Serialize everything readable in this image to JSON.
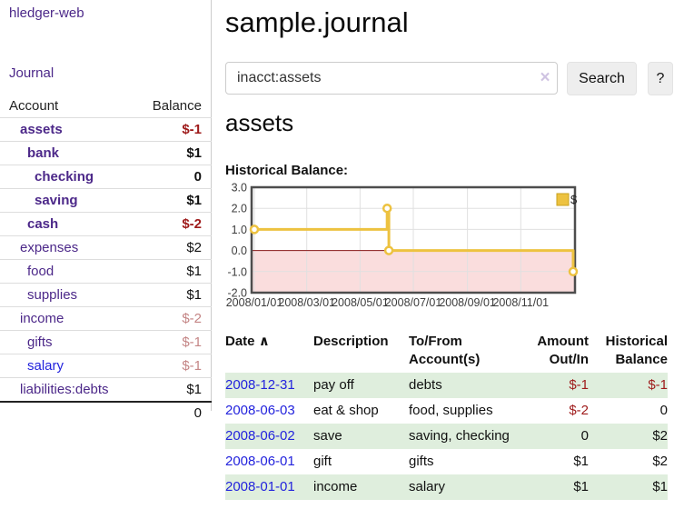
{
  "sidebar": {
    "brand": "hledger-web",
    "nav_journal": "Journal",
    "headers": {
      "account": "Account",
      "balance": "Balance"
    },
    "accounts": [
      {
        "name": "assets",
        "balance": "$-1"
      },
      {
        "name": "bank",
        "balance": "$1"
      },
      {
        "name": "checking",
        "balance": "0"
      },
      {
        "name": "saving",
        "balance": "$1"
      },
      {
        "name": "cash",
        "balance": "$-2"
      },
      {
        "name": "expenses",
        "balance": "$2"
      },
      {
        "name": "food",
        "balance": "$1"
      },
      {
        "name": "supplies",
        "balance": "$1"
      },
      {
        "name": "income",
        "balance": "$-2"
      },
      {
        "name": "gifts",
        "balance": "$-1"
      },
      {
        "name": "salary",
        "balance": "$-1"
      },
      {
        "name": "liabilities:debts",
        "balance": "$1"
      }
    ],
    "total": "0"
  },
  "header": {
    "title": "sample.journal"
  },
  "search": {
    "value": "inacct:assets",
    "clear_icon": "×",
    "button": "Search",
    "help": "?"
  },
  "account_page": {
    "heading": "assets",
    "chart_label": "Historical Balance:"
  },
  "chart_data": {
    "type": "line",
    "title": "Historical Balance",
    "legend": {
      "label": "$",
      "position": "top-right"
    },
    "series": [
      {
        "name": "$",
        "step": true,
        "points": [
          [
            "2008-01-01",
            1
          ],
          [
            "2008-06-01",
            2
          ],
          [
            "2008-06-03",
            0
          ],
          [
            "2008-12-31",
            -1
          ]
        ]
      }
    ],
    "xlim": [
      "2008-01-01",
      "2008-12-31"
    ],
    "ylim": [
      -2,
      3
    ],
    "y_ticks": [
      {
        "v": 3,
        "label": "3.0"
      },
      {
        "v": 2,
        "label": "2.0"
      },
      {
        "v": 1,
        "label": "1.0"
      },
      {
        "v": 0,
        "label": "0.0"
      },
      {
        "v": -1,
        "label": "-1.0"
      },
      {
        "v": -2,
        "label": "-2.0"
      }
    ],
    "x_ticks": [
      {
        "d": "2008-01-01",
        "label": "2008/01/01"
      },
      {
        "d": "2008-03-01",
        "label": "2008/03/01"
      },
      {
        "d": "2008-05-01",
        "label": "2008/05/01"
      },
      {
        "d": "2008-07-01",
        "label": "2008/07/01"
      },
      {
        "d": "2008-09-01",
        "label": "2008/09/01"
      },
      {
        "d": "2008-11-01",
        "label": "2008/11/01"
      }
    ],
    "grid": true,
    "colors": {
      "line": "#edc240",
      "marker_fill": "#ffffff",
      "negative_region": "#fadddd",
      "zero_line": "#8b1a1a",
      "grid": "#e0e0e0",
      "border": "#4d4d4d",
      "tick_text": "#3c3c3c"
    }
  },
  "register": {
    "headers": {
      "date": "Date",
      "sort_icon": "∧",
      "description": "Description",
      "account": "To/From Account(s)",
      "amount": "Amount Out/In",
      "balance": "Historical Balance"
    },
    "rows": [
      {
        "date": "2008-12-31",
        "description": "pay off",
        "accounts": "debts",
        "amount": "$-1",
        "balance": "$-1"
      },
      {
        "date": "2008-06-03",
        "description": "eat & shop",
        "accounts": "food, supplies",
        "amount": "$-2",
        "balance": "0"
      },
      {
        "date": "2008-06-02",
        "description": "save",
        "accounts": "saving, checking",
        "amount": "0",
        "balance": "$2"
      },
      {
        "date": "2008-06-01",
        "description": "gift",
        "accounts": "gifts",
        "amount": "$1",
        "balance": "$2"
      },
      {
        "date": "2008-01-01",
        "description": "income",
        "accounts": "salary",
        "amount": "$1",
        "balance": "$1"
      }
    ]
  }
}
